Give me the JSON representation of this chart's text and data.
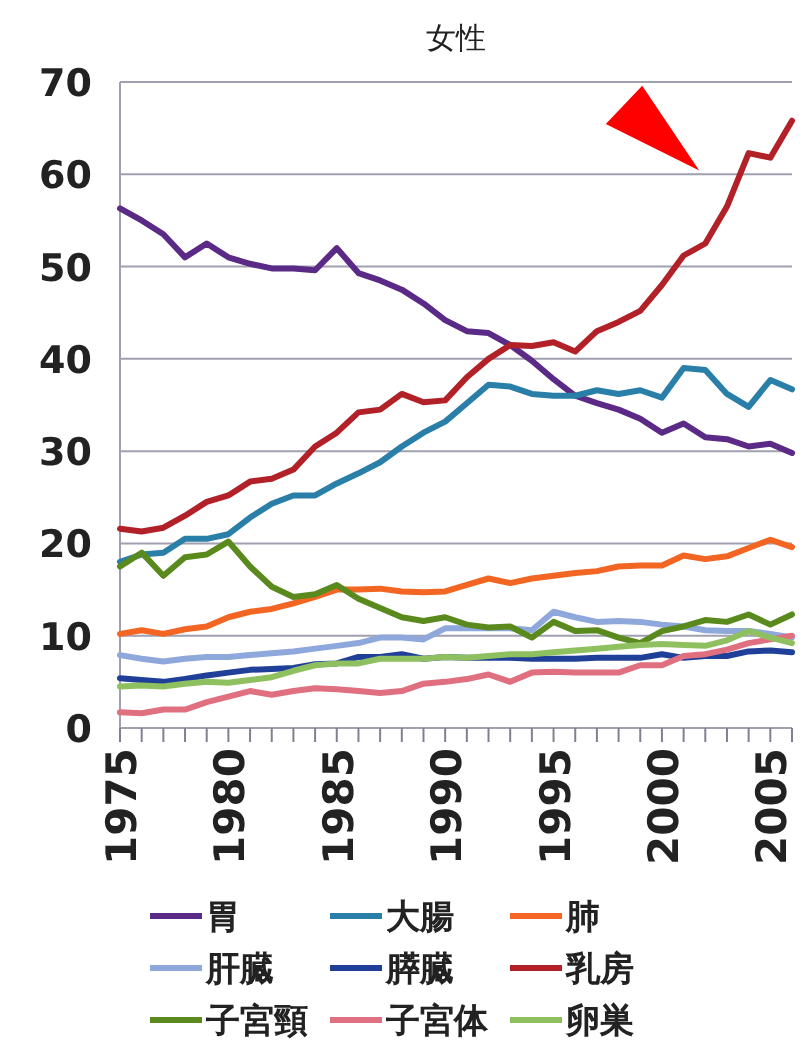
{
  "chart_data": {
    "type": "line",
    "title": "女性",
    "xlim": [
      1975,
      2006
    ],
    "ylim": [
      0,
      70
    ],
    "yticks": [
      0,
      10,
      20,
      30,
      40,
      50,
      60,
      70
    ],
    "xticks": [
      1975,
      {
        "value": 1976,
        "label": null
      },
      {
        "value": 1977,
        "label": null
      },
      {
        "value": 1978,
        "label": null
      },
      {
        "value": 1979,
        "label": null
      },
      1980,
      {
        "value": 1981,
        "label": null
      },
      {
        "value": 1982,
        "label": null
      },
      {
        "value": 1983,
        "label": null
      },
      {
        "value": 1984,
        "label": null
      },
      1985,
      {
        "value": 1986,
        "label": null
      },
      {
        "value": 1987,
        "label": null
      },
      {
        "value": 1988,
        "label": null
      },
      {
        "value": 1989,
        "label": null
      },
      1990,
      {
        "value": 1991,
        "label": null
      },
      {
        "value": 1992,
        "label": null
      },
      {
        "value": 1993,
        "label": null
      },
      {
        "value": 1994,
        "label": null
      },
      1995,
      {
        "value": 1996,
        "label": null
      },
      {
        "value": 1997,
        "label": null
      },
      {
        "value": 1998,
        "label": null
      },
      {
        "value": 1999,
        "label": null
      },
      2000,
      {
        "value": 2001,
        "label": null
      },
      {
        "value": 2002,
        "label": null
      },
      {
        "value": 2003,
        "label": null
      },
      {
        "value": 2004,
        "label": null
      },
      2005,
      {
        "value": 2006,
        "label": null
      }
    ],
    "x": [
      1975,
      1976,
      1977,
      1978,
      1979,
      1980,
      1981,
      1982,
      1983,
      1984,
      1985,
      1986,
      1987,
      1988,
      1989,
      1990,
      1991,
      1992,
      1993,
      1994,
      1995,
      1996,
      1997,
      1998,
      1999,
      2000,
      2001,
      2002,
      2003,
      2004,
      2005,
      2006
    ],
    "grid": "y",
    "legend": "bottom",
    "marker": "none",
    "line_style": "solid",
    "series": [
      {
        "name": "胃",
        "color": "#5b2a86",
        "values": [
          56.3,
          55,
          53.5,
          51,
          52.5,
          51,
          50.3,
          49.8,
          49.8,
          49.6,
          52,
          49.3,
          48.5,
          47.5,
          46,
          44.2,
          43,
          42.8,
          41.5,
          39.8,
          37.8,
          36,
          35.2,
          34.5,
          33.5,
          32,
          33,
          31.5,
          31.3,
          30.5,
          30.8,
          29.8
        ]
      },
      {
        "name": "大腸",
        "color": "#2a7fa8",
        "values": [
          18,
          18.8,
          19,
          20.5,
          20.5,
          21,
          22.8,
          24.3,
          25.2,
          25.2,
          26.5,
          27.6,
          28.8,
          30.5,
          32,
          33.2,
          35.2,
          37.2,
          37,
          36.2,
          36,
          36,
          36.6,
          36.2,
          36.6,
          35.8,
          39,
          38.8,
          36.2,
          34.8,
          37.7,
          36.7
        ]
      },
      {
        "name": "肺",
        "color": "#f26522",
        "values": [
          10.2,
          10.6,
          10.2,
          10.7,
          11,
          12,
          12.6,
          12.9,
          13.5,
          14.2,
          15,
          15,
          15.1,
          14.8,
          14.7,
          14.8,
          15.5,
          16.2,
          15.7,
          16.2,
          16.5,
          16.8,
          17,
          17.5,
          17.6,
          17.6,
          18.7,
          18.3,
          18.6,
          19.5,
          20.4,
          19.6
        ]
      },
      {
        "name": "肝臓",
        "color": "#8fa8dc",
        "values": [
          7.9,
          7.5,
          7.2,
          7.5,
          7.7,
          7.7,
          7.9,
          8.1,
          8.3,
          8.6,
          8.9,
          9.2,
          9.8,
          9.8,
          9.6,
          10.8,
          10.8,
          10.8,
          10.8,
          10.6,
          12.6,
          12,
          11.5,
          11.6,
          11.5,
          11.2,
          11,
          10.6,
          10.5,
          10.5,
          10.2,
          9.8
        ]
      },
      {
        "name": "膵臓",
        "color": "#1f3f99",
        "values": [
          5.4,
          5.2,
          5,
          5.3,
          5.7,
          6,
          6.3,
          6.4,
          6.5,
          6.9,
          7,
          7.7,
          7.7,
          8,
          7.5,
          7.7,
          7.6,
          7.6,
          7.6,
          7.5,
          7.5,
          7.5,
          7.6,
          7.6,
          7.6,
          8,
          7.6,
          7.8,
          7.8,
          8.3,
          8.4,
          8.2
        ]
      },
      {
        "name": "乳房",
        "color": "#b22028",
        "values": [
          21.6,
          21.3,
          21.7,
          23,
          24.5,
          25.2,
          26.7,
          27,
          28,
          30.5,
          32,
          34.2,
          34.5,
          36.2,
          35.3,
          35.5,
          38,
          40,
          41.5,
          41.4,
          41.8,
          40.8,
          43,
          44,
          45.2,
          48,
          51.2,
          52.5,
          56.5,
          62.3,
          61.8,
          65.8
        ]
      },
      {
        "name": "子宮頸",
        "color": "#5a8a1e",
        "values": [
          17.5,
          19,
          16.5,
          18.5,
          18.8,
          20.2,
          17.5,
          15.3,
          14.2,
          14.5,
          15.5,
          14,
          13,
          12,
          11.6,
          12,
          11.2,
          10.9,
          11,
          9.8,
          11.5,
          10.5,
          10.6,
          9.8,
          9.2,
          10.5,
          11,
          11.7,
          11.5,
          12.3,
          11.2,
          12.3
        ]
      },
      {
        "name": "子宮体",
        "color": "#e07080",
        "values": [
          1.7,
          1.6,
          2,
          2,
          2.8,
          3.4,
          4,
          3.6,
          4,
          4.3,
          4.2,
          4,
          3.8,
          4,
          4.8,
          5,
          5.3,
          5.8,
          5,
          6,
          6.1,
          6,
          6,
          6,
          6.8,
          6.8,
          7.8,
          8,
          8.5,
          9.2,
          9.6,
          10
        ]
      },
      {
        "name": "卵巣",
        "color": "#8fc060",
        "values": [
          4.5,
          4.6,
          4.5,
          4.8,
          5,
          4.9,
          5.2,
          5.5,
          6.2,
          6.8,
          7,
          7,
          7.5,
          7.5,
          7.5,
          7.7,
          7.6,
          7.8,
          8,
          8,
          8.2,
          8.4,
          8.6,
          8.8,
          9,
          9.1,
          9,
          8.9,
          9.5,
          10.5,
          9.8,
          9.2
        ]
      }
    ]
  }
}
